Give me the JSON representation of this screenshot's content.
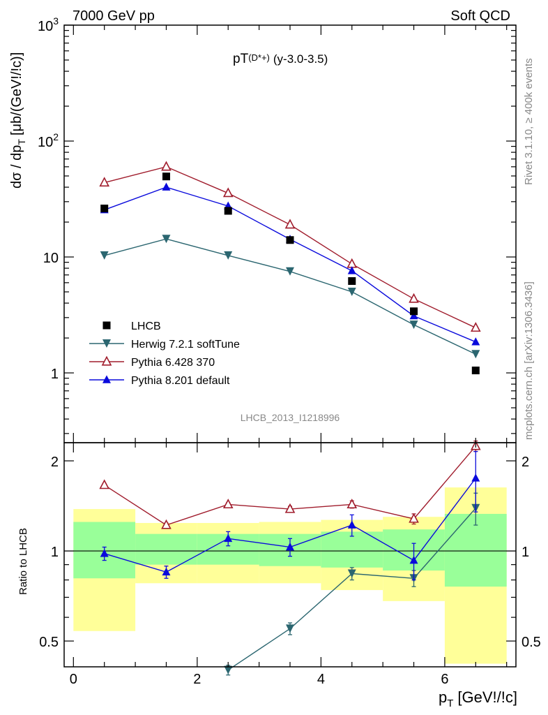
{
  "header": {
    "left_label": "7000 GeV pp",
    "right_label": "Soft QCD"
  },
  "side_labels": {
    "rivet": "Rivet 3.1.10, ≥ 400k events",
    "mcplots": "mcplots.cern.ch [arXiv:1306.3436]"
  },
  "watermark": "LHCB_2013_I1218996",
  "chart_data": [
    {
      "type": "scatter",
      "title": "pT(D*+) (y-3.0-3.5)",
      "title_main": "pT",
      "title_particle": "(D*+)",
      "title_range": "(y-3.0-3.5)",
      "ylabel": "dσ / dp_T [μb/(GeV!/!c)]",
      "ylabel_main": "dσ / dp",
      "ylabel_sub": "T",
      "ylabel_unit": "[μb/(GeV!/!c)]",
      "yscale": "log",
      "ylim": [
        0.25,
        1000
      ],
      "xlim": [
        -0.15,
        7.15
      ],
      "ytick_labels": [
        "1",
        "10",
        "10^2",
        "10^3"
      ],
      "x": [
        0.5,
        1.5,
        2.5,
        3.5,
        4.5,
        5.5,
        6.5
      ],
      "series": [
        {
          "name": "LHCB",
          "marker": "square",
          "color": "#000000",
          "values": [
            26.2,
            49.5,
            25.0,
            14.0,
            6.2,
            3.4,
            1.05
          ]
        },
        {
          "name": "Herwig 7.2.1 softTune",
          "marker": "triangle-down",
          "color": "#2b6670",
          "values": [
            10.3,
            14.3,
            10.3,
            7.5,
            5.0,
            2.6,
            1.45
          ]
        },
        {
          "name": "Pythia 6.428 370",
          "marker": "triangle-up-open",
          "color": "#a01c2c",
          "values": [
            43.8,
            60.0,
            35.5,
            19.0,
            8.7,
            4.35,
            2.45
          ]
        },
        {
          "name": "Pythia 8.201 default",
          "marker": "triangle-up",
          "color": "#0a0adc",
          "values": [
            25.5,
            40.0,
            27.5,
            14.2,
            7.6,
            3.1,
            1.85
          ]
        }
      ],
      "legend_position": "lower-left"
    },
    {
      "type": "scatter",
      "ylabel": "Ratio to LHCB",
      "xlabel": "p_T [GeV!/!c]",
      "xlabel_main": "p",
      "xlabel_sub": "T",
      "xlabel_unit": "[GeV!/!c]",
      "yscale": "log",
      "ylim": [
        0.41,
        2.3
      ],
      "xlim": [
        -0.15,
        7.15
      ],
      "xticks": [
        0,
        2,
        4,
        6
      ],
      "xtick_labels": [
        "0",
        "2",
        "4",
        "6"
      ],
      "yticks": [
        0.5,
        1,
        2
      ],
      "ytick_labels": [
        "0.5",
        "1",
        "2"
      ],
      "reference_line": 1,
      "bands": [
        {
          "x0": 0,
          "x1": 1,
          "inner": [
            0.81,
            1.25
          ],
          "outer": [
            0.54,
            1.38
          ]
        },
        {
          "x0": 1,
          "x1": 2,
          "inner": [
            0.9,
            1.14
          ],
          "outer": [
            0.78,
            1.24
          ]
        },
        {
          "x0": 2,
          "x1": 3,
          "inner": [
            0.9,
            1.14
          ],
          "outer": [
            0.78,
            1.24
          ]
        },
        {
          "x0": 3,
          "x1": 4,
          "inner": [
            0.89,
            1.14
          ],
          "outer": [
            0.78,
            1.25
          ]
        },
        {
          "x0": 4,
          "x1": 5,
          "inner": [
            0.88,
            1.16
          ],
          "outer": [
            0.74,
            1.27
          ]
        },
        {
          "x0": 5,
          "x1": 6,
          "inner": [
            0.86,
            1.18
          ],
          "outer": [
            0.68,
            1.3
          ]
        },
        {
          "x0": 6,
          "x1": 7,
          "inner": [
            0.76,
            1.33
          ],
          "outer": [
            0.42,
            1.63
          ]
        }
      ],
      "x": [
        0.5,
        1.5,
        2.5,
        3.5,
        4.5,
        5.5,
        6.5
      ],
      "series": [
        {
          "name": "Herwig 7.2.1 softTune",
          "marker": "triangle-down",
          "color": "#2b6670",
          "values": [
            null,
            null,
            0.4,
            0.55,
            0.84,
            0.81,
            1.39
          ],
          "err": [
            0,
            0,
            0.015,
            0.025,
            0.04,
            0.05,
            0.17
          ]
        },
        {
          "name": "Pythia 6.428 370",
          "marker": "triangle-up-open",
          "color": "#a01c2c",
          "values": [
            1.66,
            1.22,
            1.43,
            1.38,
            1.43,
            1.28,
            2.24
          ],
          "err": [
            0.02,
            0.02,
            0.02,
            0.03,
            0.04,
            0.05,
            0.09
          ]
        },
        {
          "name": "Pythia 8.201 default",
          "marker": "triangle-up",
          "color": "#0a0adc",
          "values": [
            0.98,
            0.85,
            1.1,
            1.03,
            1.22,
            0.93,
            1.75
          ],
          "err": [
            0.05,
            0.04,
            0.06,
            0.07,
            0.1,
            0.13,
            0.4
          ]
        }
      ]
    }
  ]
}
